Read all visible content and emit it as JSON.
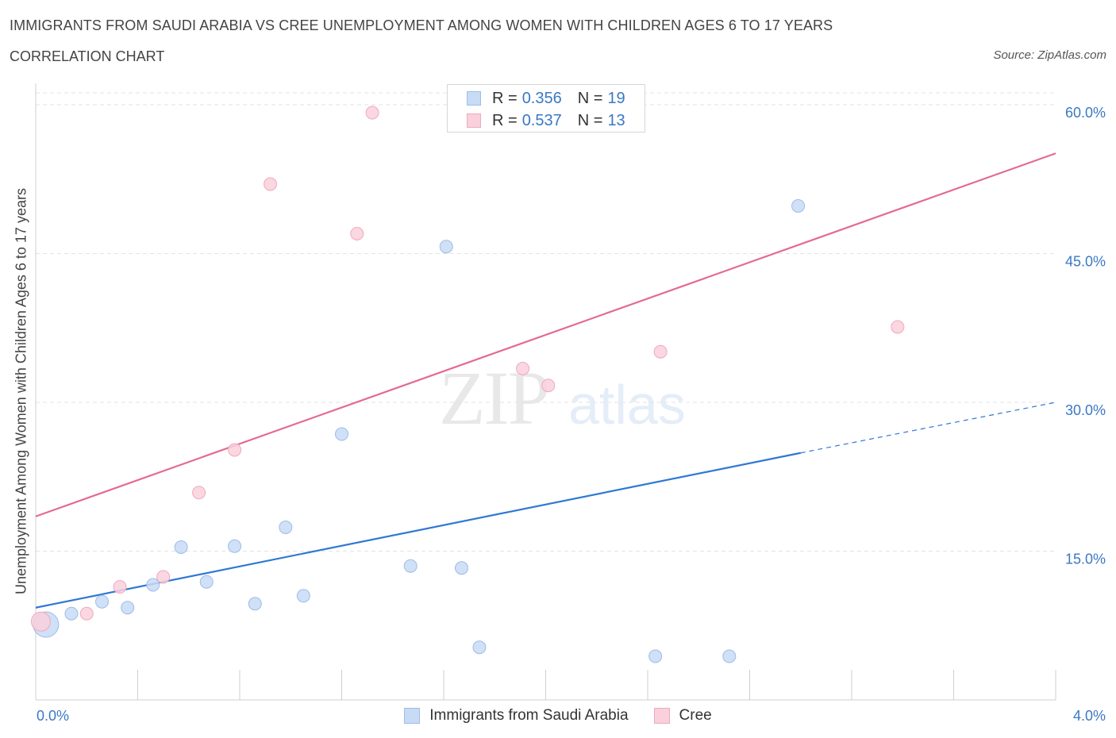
{
  "header": {
    "title": "IMMIGRANTS FROM SAUDI ARABIA VS CREE UNEMPLOYMENT AMONG WOMEN WITH CHILDREN AGES 6 TO 17 YEARS",
    "subtitle": "CORRELATION CHART",
    "source": "Source: ZipAtlas.com"
  },
  "watermark": {
    "zip": "ZIP",
    "atlas": "atlas"
  },
  "legend_top": {
    "rows": [
      {
        "r_label": "R =",
        "r_value": "0.356",
        "n_label": "N =",
        "n_value": "19",
        "color": "#a9c6ef"
      },
      {
        "r_label": "R =",
        "r_value": "0.537",
        "n_label": "N =",
        "n_value": "13",
        "color": "#f4b8c8"
      }
    ]
  },
  "legend_bottom": {
    "items": [
      {
        "label": "Immigrants from Saudi Arabia",
        "color": "#a9c6ef"
      },
      {
        "label": "Cree",
        "color": "#f4b8c8"
      }
    ]
  },
  "colors": {
    "blue_fill": "#c8dbf5",
    "blue_stroke": "#9dbde8",
    "blue_line": "#2f78d4",
    "pink_fill": "#f9d0dc",
    "pink_stroke": "#f0a9bd",
    "pink_line": "#e36b92",
    "tick_label": "#3b78c4",
    "grid": "#e3e3e3"
  },
  "chart_data": {
    "type": "scatter",
    "title": "IMMIGRANTS FROM SAUDI ARABIA VS CREE UNEMPLOYMENT AMONG WOMEN WITH CHILDREN AGES 6 TO 17 YEARS",
    "xlabel": "",
    "ylabel": "Unemployment Among Women with Children Ages 6 to 17 years",
    "xlim": [
      0.0,
      4.0
    ],
    "ylim": [
      0.0,
      60.0
    ],
    "x_tick_labels": [
      "0.0%",
      "4.0%"
    ],
    "y_ticks": [
      15,
      30,
      45,
      60
    ],
    "y_tick_labels": [
      "15.0%",
      "30.0%",
      "45.0%",
      "60.0%"
    ],
    "grid": true,
    "legend_position": "top-center",
    "series": [
      {
        "name": "Immigrants from Saudi Arabia",
        "R": 0.356,
        "N": 19,
        "points": [
          {
            "x": 0.04,
            "y": 7.6,
            "size": "large"
          },
          {
            "x": 0.14,
            "y": 8.7
          },
          {
            "x": 0.26,
            "y": 9.9
          },
          {
            "x": 0.36,
            "y": 9.3
          },
          {
            "x": 0.46,
            "y": 11.6
          },
          {
            "x": 0.57,
            "y": 15.4
          },
          {
            "x": 0.67,
            "y": 11.9
          },
          {
            "x": 0.78,
            "y": 15.5
          },
          {
            "x": 0.86,
            "y": 9.7
          },
          {
            "x": 0.98,
            "y": 17.4
          },
          {
            "x": 1.05,
            "y": 10.5
          },
          {
            "x": 1.2,
            "y": 26.8
          },
          {
            "x": 1.47,
            "y": 13.5
          },
          {
            "x": 1.61,
            "y": 45.7
          },
          {
            "x": 1.67,
            "y": 13.3
          },
          {
            "x": 1.74,
            "y": 5.3
          },
          {
            "x": 2.43,
            "y": 4.4
          },
          {
            "x": 2.72,
            "y": 4.4
          },
          {
            "x": 2.99,
            "y": 49.8
          }
        ],
        "trend": {
          "x0": 0.0,
          "y0": 9.3,
          "x1": 3.0,
          "y1": 24.9,
          "dashed_to_x": 4.0,
          "dashed_to_y": 30.0
        }
      },
      {
        "name": "Cree",
        "R": 0.537,
        "N": 13,
        "points": [
          {
            "x": 0.02,
            "y": 7.9,
            "size": "medium"
          },
          {
            "x": 0.2,
            "y": 8.7
          },
          {
            "x": 0.33,
            "y": 11.4
          },
          {
            "x": 0.5,
            "y": 12.4
          },
          {
            "x": 0.64,
            "y": 20.9
          },
          {
            "x": 0.78,
            "y": 25.2
          },
          {
            "x": 0.92,
            "y": 52.0
          },
          {
            "x": 1.26,
            "y": 47.0
          },
          {
            "x": 1.32,
            "y": 59.2
          },
          {
            "x": 1.91,
            "y": 33.4
          },
          {
            "x": 2.01,
            "y": 31.7
          },
          {
            "x": 2.45,
            "y": 35.1
          },
          {
            "x": 3.38,
            "y": 37.6
          }
        ],
        "trend": {
          "x0": 0.0,
          "y0": 18.5,
          "x1": 4.0,
          "y1": 55.1
        }
      }
    ]
  }
}
